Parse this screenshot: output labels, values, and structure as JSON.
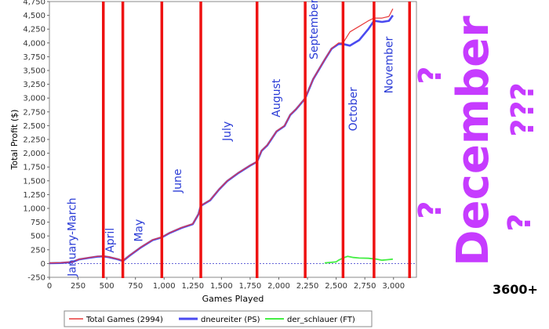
{
  "chart_data": {
    "type": "line",
    "xlabel": "Games Played",
    "ylabel": "Total Profit ($)",
    "xlim": [
      0,
      3200
    ],
    "ylim": [
      -250,
      4750
    ],
    "x_ticks": [
      0,
      250,
      500,
      750,
      1000,
      1250,
      1500,
      1750,
      2000,
      2250,
      2500,
      2750,
      3000
    ],
    "x_tick_labels": [
      "0",
      "250",
      "500",
      "750",
      "1,000",
      "1,250",
      "1,500",
      "1,750",
      "2,000",
      "2,250",
      "2,500",
      "2,750",
      "3,000"
    ],
    "y_ticks": [
      -250,
      0,
      250,
      500,
      750,
      1000,
      1250,
      1500,
      1750,
      2000,
      2250,
      2500,
      2750,
      3000,
      3250,
      3500,
      3750,
      4000,
      4250,
      4500,
      4750
    ],
    "y_tick_labels": [
      "-250",
      "0",
      "250",
      "500",
      "750",
      "1,000",
      "1,250",
      "1,500",
      "1,750",
      "2,000",
      "2,250",
      "2,500",
      "2,750",
      "3,000",
      "3,250",
      "3,500",
      "3,750",
      "4,000",
      "4,250",
      "4,500",
      "4,750"
    ],
    "series": [
      {
        "name": "Total Games (2994)",
        "color": "#e83a3a",
        "points": [
          [
            0,
            10
          ],
          [
            100,
            15
          ],
          [
            200,
            30
          ],
          [
            260,
            80
          ],
          [
            350,
            110
          ],
          [
            420,
            130
          ],
          [
            470,
            135
          ],
          [
            520,
            120
          ],
          [
            600,
            80
          ],
          [
            640,
            50
          ],
          [
            700,
            150
          ],
          [
            800,
            300
          ],
          [
            900,
            430
          ],
          [
            980,
            480
          ],
          [
            1050,
            560
          ],
          [
            1150,
            650
          ],
          [
            1250,
            720
          ],
          [
            1300,
            900
          ],
          [
            1320,
            1050
          ],
          [
            1400,
            1150
          ],
          [
            1480,
            1350
          ],
          [
            1550,
            1500
          ],
          [
            1650,
            1650
          ],
          [
            1750,
            1780
          ],
          [
            1810,
            1850
          ],
          [
            1850,
            2050
          ],
          [
            1900,
            2150
          ],
          [
            1980,
            2400
          ],
          [
            2050,
            2500
          ],
          [
            2100,
            2700
          ],
          [
            2150,
            2800
          ],
          [
            2230,
            3000
          ],
          [
            2300,
            3350
          ],
          [
            2400,
            3700
          ],
          [
            2460,
            3900
          ],
          [
            2520,
            4000
          ],
          [
            2560,
            4000
          ],
          [
            2620,
            4200
          ],
          [
            2700,
            4300
          ],
          [
            2780,
            4400
          ],
          [
            2830,
            4450
          ],
          [
            2900,
            4450
          ],
          [
            2960,
            4480
          ],
          [
            2994,
            4620
          ]
        ]
      },
      {
        "name": "dneureiter (PS)",
        "color": "#4a4af0",
        "points": [
          [
            0,
            5
          ],
          [
            100,
            10
          ],
          [
            200,
            25
          ],
          [
            260,
            75
          ],
          [
            350,
            105
          ],
          [
            420,
            125
          ],
          [
            470,
            130
          ],
          [
            520,
            115
          ],
          [
            600,
            75
          ],
          [
            640,
            45
          ],
          [
            700,
            145
          ],
          [
            800,
            295
          ],
          [
            900,
            425
          ],
          [
            980,
            475
          ],
          [
            1050,
            555
          ],
          [
            1150,
            645
          ],
          [
            1250,
            715
          ],
          [
            1300,
            895
          ],
          [
            1320,
            1045
          ],
          [
            1400,
            1145
          ],
          [
            1480,
            1345
          ],
          [
            1550,
            1495
          ],
          [
            1650,
            1645
          ],
          [
            1750,
            1775
          ],
          [
            1810,
            1845
          ],
          [
            1850,
            2045
          ],
          [
            1900,
            2145
          ],
          [
            1980,
            2395
          ],
          [
            2050,
            2495
          ],
          [
            2100,
            2695
          ],
          [
            2150,
            2795
          ],
          [
            2230,
            2995
          ],
          [
            2300,
            3345
          ],
          [
            2400,
            3695
          ],
          [
            2460,
            3895
          ],
          [
            2520,
            3980
          ],
          [
            2560,
            3980
          ],
          [
            2620,
            3950
          ],
          [
            2700,
            4050
          ],
          [
            2780,
            4250
          ],
          [
            2830,
            4400
          ],
          [
            2900,
            4380
          ],
          [
            2960,
            4400
          ],
          [
            2994,
            4500
          ]
        ]
      },
      {
        "name": "der_schlauer (FT)",
        "color": "#44ee44",
        "points": [
          [
            2400,
            10
          ],
          [
            2450,
            20
          ],
          [
            2500,
            30
          ],
          [
            2520,
            60
          ],
          [
            2560,
            100
          ],
          [
            2600,
            130
          ],
          [
            2650,
            110
          ],
          [
            2700,
            100
          ],
          [
            2780,
            95
          ],
          [
            2850,
            80
          ],
          [
            2900,
            60
          ],
          [
            2950,
            70
          ],
          [
            2994,
            80
          ]
        ]
      }
    ],
    "month_markers": [
      470,
      640,
      980,
      1320,
      1810,
      2230,
      2560,
      2830,
      3140
    ],
    "month_labels": [
      {
        "text": "January-March",
        "x": 230,
        "y": 480
      },
      {
        "text": "April",
        "x": 560,
        "y": 420
      },
      {
        "text": "May",
        "x": 810,
        "y": 600
      },
      {
        "text": "June",
        "x": 1150,
        "y": 1500
      },
      {
        "text": "July",
        "x": 1580,
        "y": 2400
      },
      {
        "text": "August",
        "x": 2010,
        "y": 3000
      },
      {
        "text": "September",
        "x": 2340,
        "y": 4250
      },
      {
        "text": "October",
        "x": 2680,
        "y": 2800
      },
      {
        "text": "November",
        "x": 2990,
        "y": 3600
      }
    ],
    "annotations": [
      "December",
      "?",
      "??",
      "???",
      "?",
      "?",
      "3600+"
    ]
  }
}
